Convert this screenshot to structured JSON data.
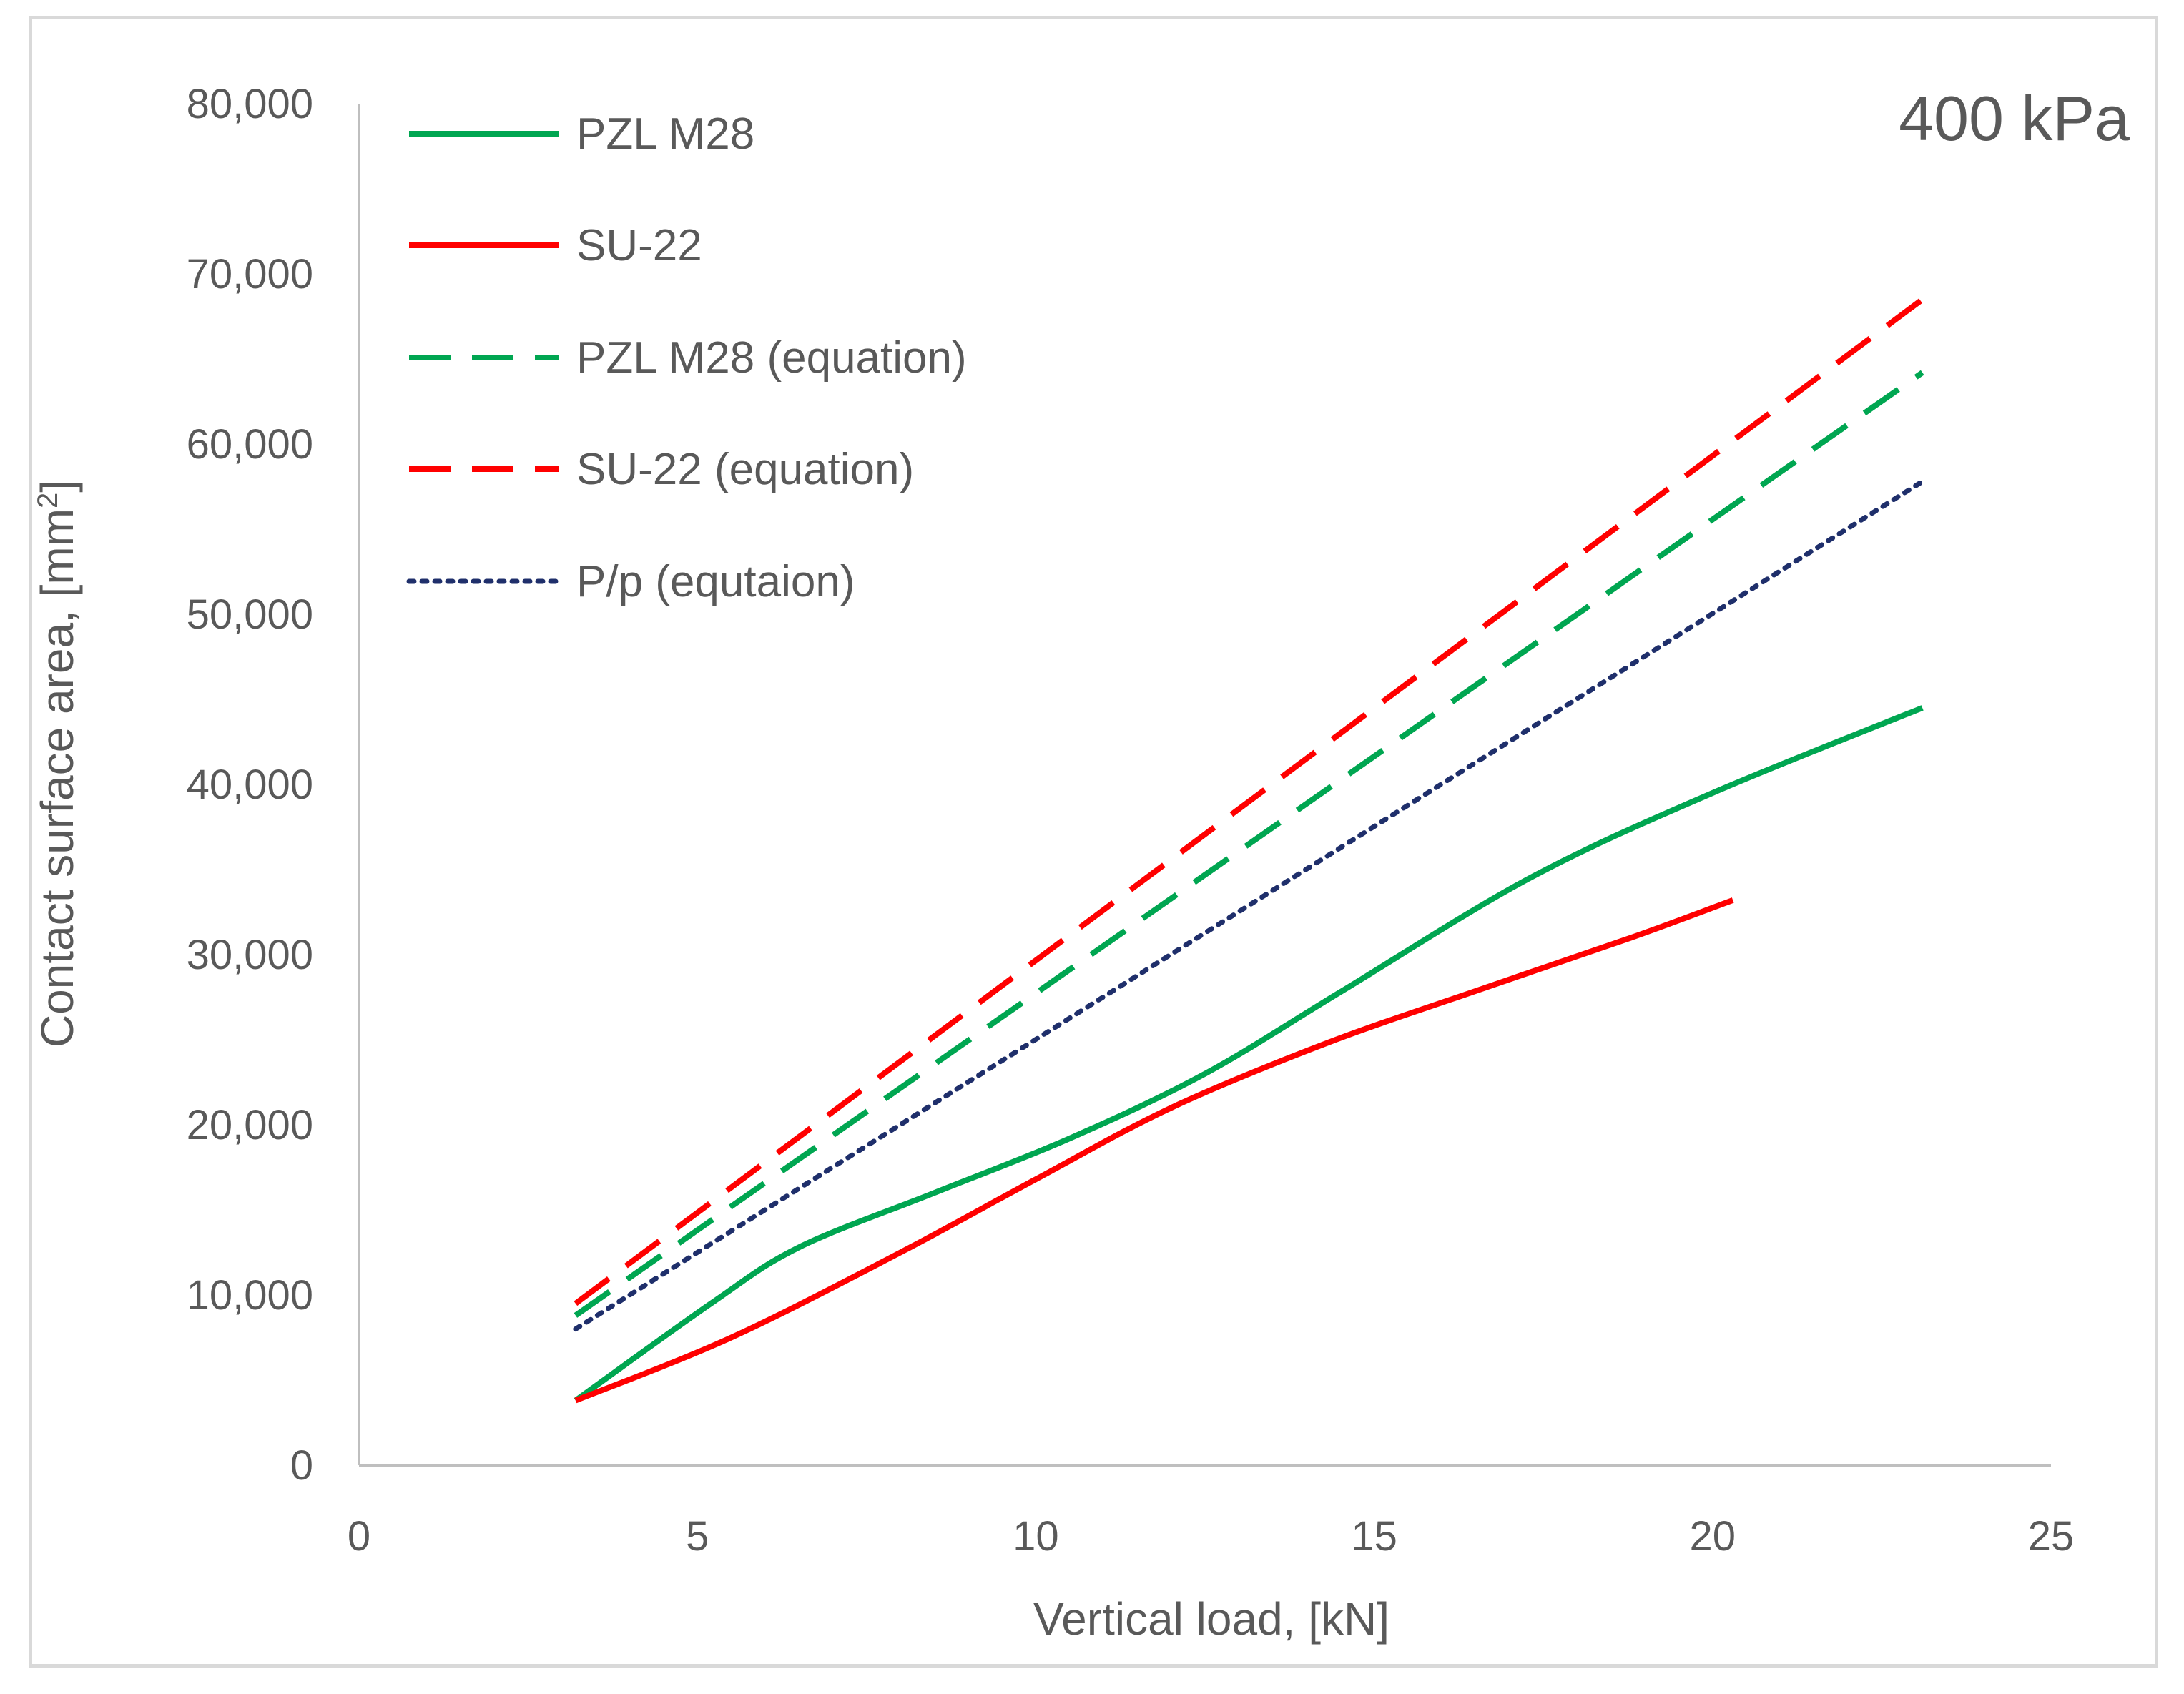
{
  "chart_data": {
    "type": "line",
    "annotation": "400 kPa",
    "xlabel": "Vertical load, [kN]",
    "ylabel": "Contact surface area, [mm",
    "ylabel_superscript": "2",
    "ylabel_suffix": "]",
    "xlim": [
      0,
      25
    ],
    "ylim": [
      0,
      80000
    ],
    "x_ticks": [
      0,
      5,
      10,
      15,
      20,
      25
    ],
    "x_tick_labels": [
      "0",
      "5",
      "10",
      "15",
      "20",
      "25"
    ],
    "y_ticks": [
      0,
      10000,
      20000,
      30000,
      40000,
      50000,
      60000,
      70000,
      80000
    ],
    "y_tick_labels": [
      "0",
      "10,000",
      "20,000",
      "30,000",
      "40,000",
      "50,000",
      "60,000",
      "70,000",
      "80,000"
    ],
    "grid": false,
    "legend_position": "top-left",
    "series": [
      {
        "name": "PZL M28",
        "color": "#00a651",
        "dash": "solid",
        "x": [
          3.2,
          5.2,
          6.5,
          8.5,
          10.5,
          12.5,
          14.5,
          17.3,
          20.0,
          23.1
        ],
        "y": [
          3800,
          9500,
          12800,
          16000,
          19200,
          23000,
          27800,
          34500,
          39500,
          44500
        ]
      },
      {
        "name": "SU-22",
        "color": "#ff0000",
        "dash": "solid",
        "x": [
          3.2,
          5.5,
          8.0,
          10.0,
          12.0,
          14.3,
          16.6,
          18.8,
          20.3
        ],
        "y": [
          3800,
          7500,
          12500,
          16800,
          21000,
          24800,
          28000,
          31000,
          33200
        ]
      },
      {
        "name": "PZL M28 (equation)",
        "color": "#00a651",
        "dash": "dashed",
        "x": [
          3.2,
          23.1
        ],
        "y": [
          8800,
          64200
        ]
      },
      {
        "name": "SU-22 (equation)",
        "color": "#ff0000",
        "dash": "dashed",
        "x": [
          3.2,
          23.1
        ],
        "y": [
          9500,
          68500
        ]
      },
      {
        "name": "P/p (equtaion)",
        "color": "#1f2f6b",
        "dash": "dotted",
        "x": [
          3.2,
          23.1
        ],
        "y": [
          8000,
          57800
        ]
      }
    ]
  }
}
